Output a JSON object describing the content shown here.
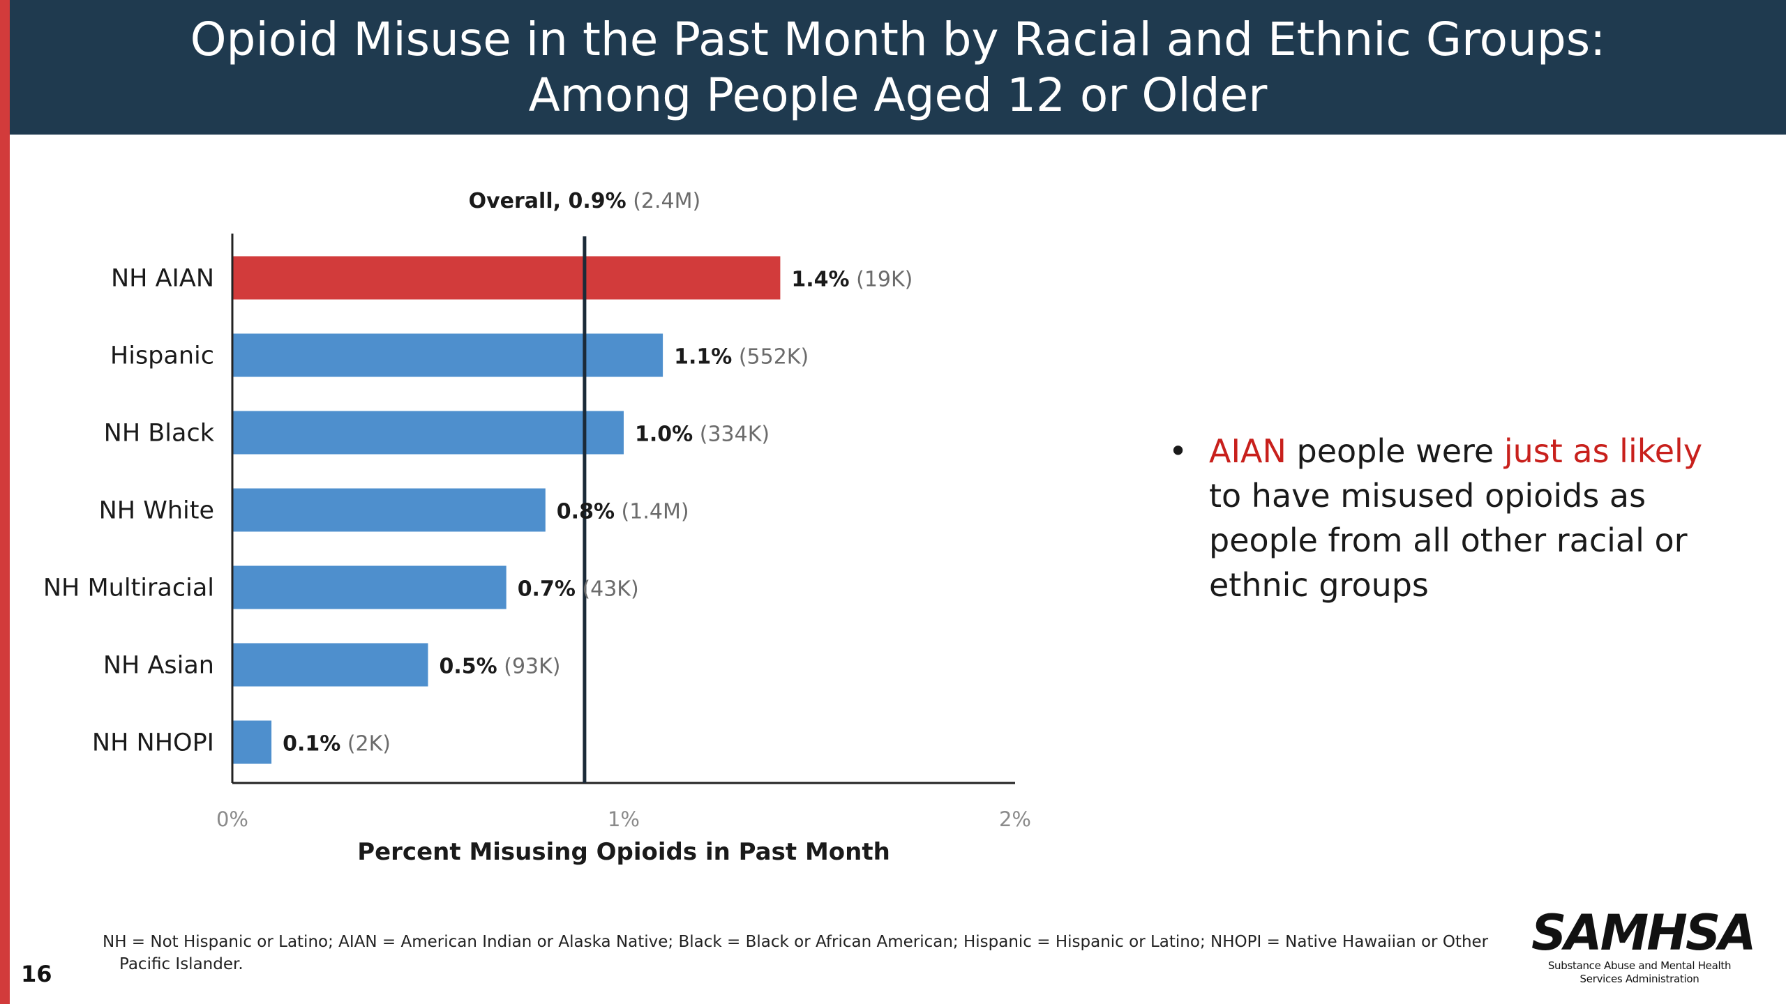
{
  "header": {
    "line1": "Opioid Misuse in the Past Month by Racial and Ethnic Groups:",
    "line2": "Among People Aged 12 or Older"
  },
  "colors": {
    "header_bg": "#1f3a4f",
    "accent_bar": "#d23b3b",
    "highlight_bar": "#d23b3b",
    "default_bar": "#4e8fcd",
    "highlight_text": "#c8201c",
    "reference_line": "#1b2a38"
  },
  "chart_data": {
    "type": "bar",
    "orientation": "horizontal",
    "categories": [
      "NH AIAN",
      "Hispanic",
      "NH Black",
      "NH White",
      "NH Multiracial",
      "NH Asian",
      "NH NHOPI"
    ],
    "values": [
      1.4,
      1.1,
      1.0,
      0.8,
      0.7,
      0.5,
      0.1
    ],
    "value_labels": [
      "1.4%",
      "1.1%",
      "1.0%",
      "0.8%",
      "0.7%",
      "0.5%",
      "0.1%"
    ],
    "count_labels": [
      "(19K)",
      "(552K)",
      "(334K)",
      "(1.4M)",
      "(43K)",
      "(93K)",
      "(2K)"
    ],
    "highlight_index": 0,
    "xlim": [
      0,
      2
    ],
    "xticks": [
      0,
      1,
      2
    ],
    "xtick_labels": [
      "0%",
      "1%",
      "2%"
    ],
    "xlabel": "Percent Misusing Opioids in Past Month",
    "reference": {
      "value": 0.9,
      "label": "Overall, 0.9%",
      "count_label": "(2.4M)"
    },
    "grid": false
  },
  "bullet": {
    "part1": "AIAN",
    "part2": " people were ",
    "part3": "just as likely",
    "part4": " to have misused opioids as people from all other racial or ethnic groups"
  },
  "footnote": "NH = Not Hispanic or Latino; AIAN = American Indian or Alaska Native; Black = Black or African American; Hispanic = Hispanic or Latino; NHOPI = Native Hawaiian or Other Pacific Islander.",
  "page_number": "16",
  "logo": {
    "name": "SAMHSA",
    "subtitle_line1": "Substance Abuse and Mental Health",
    "subtitle_line2": "Services Administration"
  }
}
